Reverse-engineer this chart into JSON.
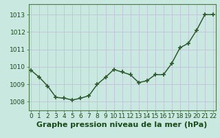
{
  "x": [
    0,
    1,
    2,
    3,
    4,
    5,
    6,
    7,
    8,
    9,
    10,
    11,
    12,
    13,
    14,
    15,
    16,
    17,
    18,
    19,
    20,
    21,
    22
  ],
  "y": [
    1009.8,
    1009.4,
    1008.9,
    1008.25,
    1008.2,
    1008.1,
    1008.2,
    1008.35,
    1009.0,
    1009.4,
    1009.85,
    1009.7,
    1009.55,
    1009.1,
    1009.2,
    1009.55,
    1009.55,
    1010.2,
    1011.1,
    1011.35,
    1012.1,
    1013.0,
    1013.0
  ],
  "line_color": "#2d5a2d",
  "marker_color": "#2d5a2d",
  "bg_color": "#c8e8e0",
  "plot_bg_color": "#c8e8e0",
  "grid_color": "#c0c0d8",
  "spine_color": "#4a7a4a",
  "xlabel": "Graphe pression niveau de la mer (hPa)",
  "xlabel_fontsize": 8,
  "xlabel_color": "#1a4a1a",
  "ytick_labels": [
    "1008",
    "1009",
    "1010",
    "1011",
    "1012",
    "1013"
  ],
  "ylim": [
    1007.5,
    1013.6
  ],
  "xlim": [
    -0.3,
    22.3
  ],
  "yticks": [
    1008,
    1009,
    1010,
    1011,
    1012,
    1013
  ],
  "xticks": [
    0,
    1,
    2,
    3,
    4,
    5,
    6,
    7,
    8,
    9,
    10,
    11,
    12,
    13,
    14,
    15,
    16,
    17,
    18,
    19,
    20,
    21,
    22
  ],
  "tick_fontsize": 6.5,
  "line_width": 1.1,
  "marker_size": 4,
  "marker_style": "+"
}
